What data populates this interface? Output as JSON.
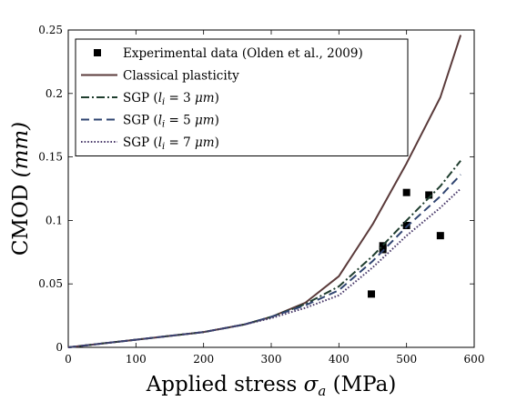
{
  "chart_data": {
    "type": "line",
    "title": "",
    "xlabel": "Applied stress σa (MPa)",
    "xlabel_parts": {
      "pre": "Applied stress ",
      "sym": "σ",
      "sub": "a",
      "post": " (MPa)"
    },
    "ylabel": "CMOD (mm)",
    "ylabel_parts": {
      "pre": "CMOD ",
      "unit": "(mm)"
    },
    "xlim": [
      0,
      600
    ],
    "ylim": [
      0,
      0.25
    ],
    "x_ticks": [
      0,
      100,
      200,
      300,
      400,
      500,
      600
    ],
    "x_tick_labels": [
      "0",
      "100",
      "200",
      "300",
      "400",
      "500",
      "600"
    ],
    "y_ticks": [
      0,
      0.05,
      0.1,
      0.15,
      0.2,
      0.25
    ],
    "y_tick_labels": [
      "0",
      "0.05",
      "0.1",
      "0.15",
      "0.2",
      "0.25"
    ],
    "grid": false,
    "legend_position": "top-left",
    "series": [
      {
        "name": "Experimental data (Olden et al., 2009)",
        "style": "marker-square",
        "color": "#000000",
        "x": [
          448,
          465,
          465,
          500,
          500,
          533,
          550
        ],
        "y": [
          0.042,
          0.077,
          0.08,
          0.122,
          0.096,
          0.12,
          0.088
        ]
      },
      {
        "name": "Classical plasticity",
        "style": "solid",
        "color": "#5a3a3a",
        "x": [
          0,
          100,
          200,
          260,
          300,
          350,
          400,
          450,
          500,
          550,
          580
        ],
        "y": [
          0,
          0.006,
          0.012,
          0.018,
          0.024,
          0.035,
          0.056,
          0.097,
          0.145,
          0.197,
          0.246
        ]
      },
      {
        "name": "SGP (li = 3 μm)",
        "style": "dashdot",
        "color": "#1f3d2e",
        "x": [
          0,
          100,
          200,
          260,
          300,
          350,
          400,
          450,
          500,
          550,
          580
        ],
        "y": [
          0,
          0.006,
          0.012,
          0.018,
          0.024,
          0.034,
          0.048,
          0.072,
          0.1,
          0.127,
          0.147
        ]
      },
      {
        "name": "SGP (li = 5 μm)",
        "style": "dashed",
        "color": "#2f4470",
        "x": [
          0,
          100,
          200,
          260,
          300,
          350,
          400,
          450,
          500,
          550,
          580
        ],
        "y": [
          0,
          0.006,
          0.012,
          0.018,
          0.024,
          0.033,
          0.045,
          0.068,
          0.095,
          0.119,
          0.136
        ]
      },
      {
        "name": "SGP (li = 7 μm)",
        "style": "dotted",
        "color": "#4a3a6a",
        "x": [
          0,
          100,
          200,
          260,
          300,
          350,
          400,
          450,
          500,
          550,
          580
        ],
        "y": [
          0,
          0.006,
          0.012,
          0.018,
          0.023,
          0.031,
          0.041,
          0.063,
          0.088,
          0.11,
          0.125
        ]
      }
    ],
    "legend_entries": [
      {
        "pre": "Experimental data (Olden et al., 2009)"
      },
      {
        "pre": "Classical plasticity"
      },
      {
        "pre": "SGP (",
        "sym": "l",
        "sub": "i",
        "mid": " = 3 ",
        "unit": "μm",
        "post": ")"
      },
      {
        "pre": "SGP (",
        "sym": "l",
        "sub": "i",
        "mid": " = 5 ",
        "unit": "μm",
        "post": ")"
      },
      {
        "pre": "SGP (",
        "sym": "l",
        "sub": "i",
        "mid": " = 7 ",
        "unit": "μm",
        "post": ")"
      }
    ]
  }
}
